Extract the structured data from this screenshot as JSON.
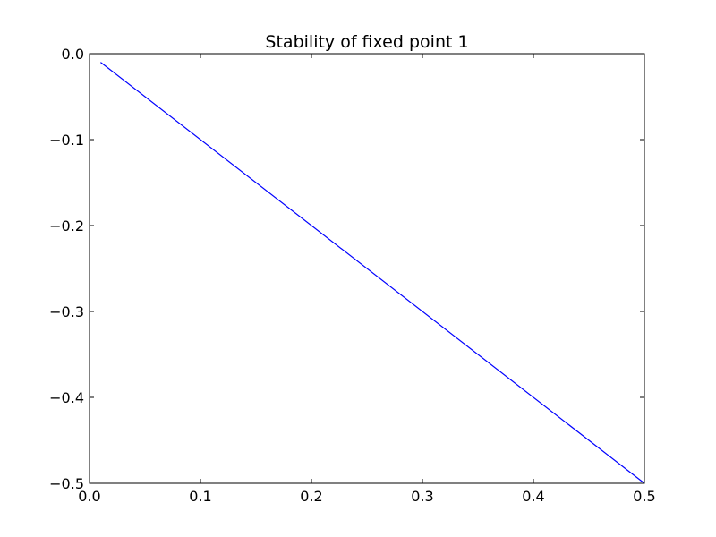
{
  "chart_data": {
    "type": "line",
    "title": "Stability of fixed point 1",
    "xlabel": "",
    "ylabel": "",
    "xlim": [
      0.0,
      0.5
    ],
    "ylim": [
      -0.5,
      0.0
    ],
    "x_ticks": [
      0.0,
      0.1,
      0.2,
      0.3,
      0.4,
      0.5
    ],
    "x_tick_labels": [
      "0.0",
      "0.1",
      "0.2",
      "0.3",
      "0.4",
      "0.5"
    ],
    "y_ticks": [
      0.0,
      -0.1,
      -0.2,
      -0.3,
      -0.4,
      -0.5
    ],
    "y_tick_labels": [
      "0.0",
      "−0.1",
      "−0.2",
      "−0.3",
      "−0.4",
      "−0.5"
    ],
    "grid": false,
    "series": [
      {
        "color": "#0000ff",
        "x": [
          0.01,
          0.5
        ],
        "y": [
          -0.01,
          -0.5
        ]
      }
    ]
  }
}
